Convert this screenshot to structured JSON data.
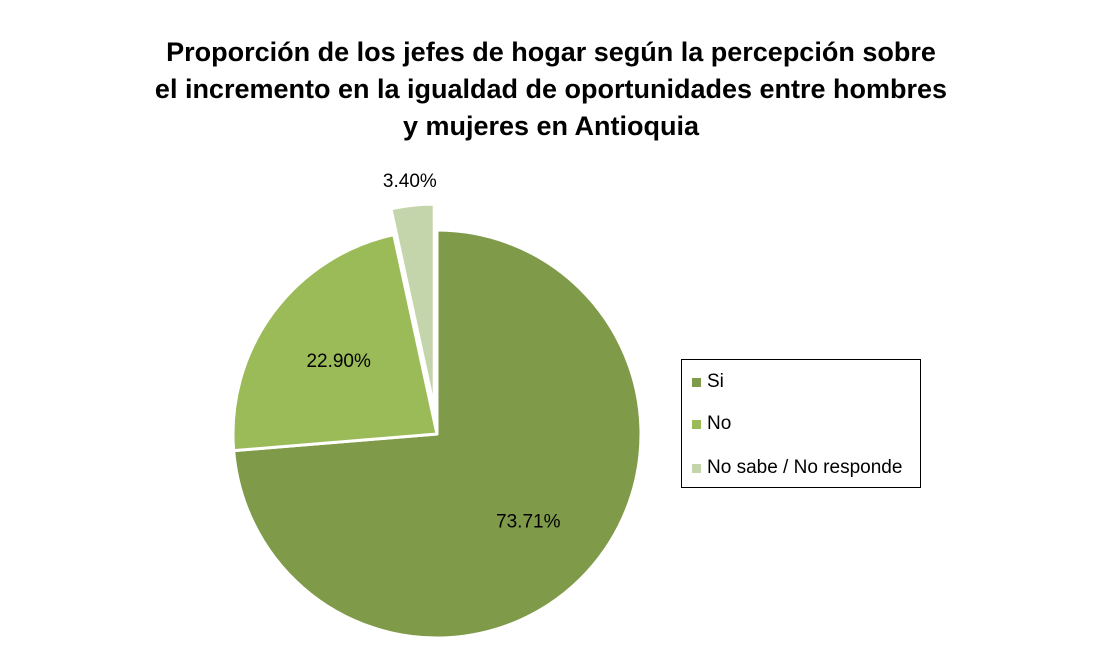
{
  "chart_data": {
    "type": "pie",
    "title_lines": [
      "Proporción de los jefes de hogar según la percepción  sobre",
      "el incremento en la igualdad de oportunidades entre hombres",
      "y mujeres en Antioquia"
    ],
    "slices": [
      {
        "label": "Si",
        "value": 73.71,
        "value_label": "73.71%",
        "color": "#7f9b4a",
        "explode": false
      },
      {
        "label": "No",
        "value": 22.9,
        "value_label": "22.90%",
        "color": "#9bbb59",
        "explode": false
      },
      {
        "label": "No sabe / No responde",
        "value": 3.4,
        "value_label": "3.40%",
        "color": "#c5d5ab",
        "explode": true
      }
    ],
    "start": "12 o'clock",
    "direction": "clockwise",
    "legend_position": "right"
  }
}
